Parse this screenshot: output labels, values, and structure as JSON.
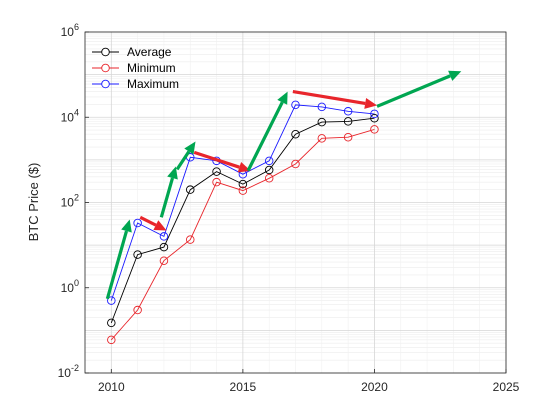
{
  "chart_data": {
    "type": "line",
    "title": "",
    "xlabel": "",
    "ylabel": "BTC Price ($)",
    "x_scale": "linear",
    "y_scale": "log",
    "xlim": [
      2009,
      2025
    ],
    "ylim": [
      0.01,
      1000000
    ],
    "x_ticks": [
      2010,
      2015,
      2020,
      2025
    ],
    "x_tick_labels": [
      "2010",
      "2015",
      "2020",
      "2025"
    ],
    "y_ticks": [
      0.01,
      1,
      100,
      10000,
      1000000
    ],
    "y_tick_labels": [
      {
        "base": "10",
        "exp": "-2"
      },
      {
        "base": "10",
        "exp": "0"
      },
      {
        "base": "10",
        "exp": "2"
      },
      {
        "base": "10",
        "exp": "4"
      },
      {
        "base": "10",
        "exp": "6"
      }
    ],
    "grid": true,
    "legend_position": "top-left",
    "x": [
      2010,
      2011,
      2012,
      2013,
      2014,
      2015,
      2016,
      2017,
      2018,
      2019,
      2020
    ],
    "series": [
      {
        "name": "Average",
        "color": "#000000",
        "values": [
          0.15,
          6,
          9,
          200,
          530,
          270,
          580,
          4000,
          7700,
          8000,
          9500
        ]
      },
      {
        "name": "Minimum",
        "color": "#e8252b",
        "values": [
          0.06,
          0.3,
          4.3,
          13.5,
          300,
          190,
          370,
          800,
          3200,
          3400,
          5200
        ]
      },
      {
        "name": "Maximum",
        "color": "#1a1aff",
        "values": [
          0.5,
          33,
          16,
          1150,
          950,
          460,
          950,
          19500,
          17500,
          13800,
          12000
        ]
      }
    ],
    "annotations": [
      {
        "type": "arrow",
        "color": "#00a651",
        "from": [
          2009.85,
          0.55
        ],
        "to": [
          2010.7,
          40
        ]
      },
      {
        "type": "arrow",
        "color": "#e8252b",
        "from": [
          2011.1,
          45
        ],
        "to": [
          2012.1,
          22
        ]
      },
      {
        "type": "arrow",
        "color": "#00a651",
        "from": [
          2011.9,
          45
        ],
        "to": [
          2012.45,
          700
        ]
      },
      {
        "type": "arrow",
        "color": "#00a651",
        "from": [
          2012.5,
          600
        ],
        "to": [
          2013.2,
          2700
        ]
      },
      {
        "type": "arrow",
        "color": "#e8252b",
        "from": [
          2013.15,
          1500
        ],
        "to": [
          2015.3,
          550
        ]
      },
      {
        "type": "arrow",
        "color": "#00a651",
        "from": [
          2015.2,
          560
        ],
        "to": [
          2016.7,
          40000
        ]
      },
      {
        "type": "arrow",
        "color": "#e8252b",
        "from": [
          2016.9,
          40000
        ],
        "to": [
          2020.1,
          19000
        ]
      },
      {
        "type": "arrow",
        "color": "#00a651",
        "from": [
          2020.1,
          18000
        ],
        "to": [
          2023.3,
          120000
        ]
      }
    ]
  }
}
